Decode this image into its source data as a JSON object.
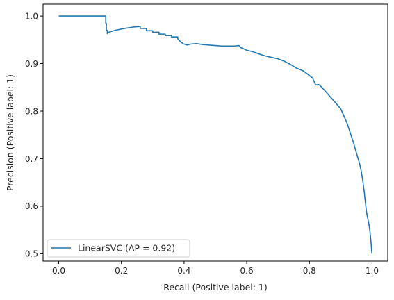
{
  "chart_data": {
    "type": "line",
    "title": "",
    "xlabel": "Recall (Positive label: 1)",
    "ylabel": "Precision (Positive label: 1)",
    "xlim": [
      -0.05,
      1.05
    ],
    "ylim": [
      0.4845,
      1.025
    ],
    "xticks": [
      "0.0",
      "0.2",
      "0.4",
      "0.6",
      "0.8",
      "1.0"
    ],
    "yticks": [
      "0.5",
      "0.6",
      "0.7",
      "0.8",
      "0.9",
      "1.0"
    ],
    "grid": false,
    "legend": {
      "placement": "lower-left",
      "entries": [
        "LinearSVC (AP = 0.92)"
      ]
    },
    "series": [
      {
        "name": "LinearSVC (AP = 0.92)",
        "color": "#1f77b4",
        "x": [
          0.0,
          0.15,
          0.15,
          0.152,
          0.152,
          0.155,
          0.155,
          0.16,
          0.18,
          0.21,
          0.24,
          0.26,
          0.26,
          0.28,
          0.28,
          0.3,
          0.3,
          0.32,
          0.32,
          0.34,
          0.34,
          0.36,
          0.36,
          0.38,
          0.38,
          0.39,
          0.4,
          0.41,
          0.42,
          0.44,
          0.46,
          0.48,
          0.5,
          0.52,
          0.54,
          0.56,
          0.575,
          0.58,
          0.6,
          0.62,
          0.64,
          0.66,
          0.68,
          0.7,
          0.72,
          0.74,
          0.76,
          0.78,
          0.8,
          0.81,
          0.82,
          0.83,
          0.84,
          0.86,
          0.88,
          0.9,
          0.91,
          0.92,
          0.93,
          0.94,
          0.95,
          0.96,
          0.965,
          0.97,
          0.975,
          0.98,
          0.983,
          0.986,
          0.99,
          0.993,
          0.995,
          0.997,
          0.998,
          0.999,
          1.0
        ],
        "y": [
          1.0,
          1.0,
          0.985,
          0.985,
          0.97,
          0.97,
          0.963,
          0.966,
          0.97,
          0.974,
          0.977,
          0.978,
          0.974,
          0.974,
          0.969,
          0.969,
          0.966,
          0.966,
          0.962,
          0.962,
          0.959,
          0.959,
          0.956,
          0.956,
          0.952,
          0.945,
          0.941,
          0.939,
          0.941,
          0.942,
          0.94,
          0.939,
          0.938,
          0.937,
          0.937,
          0.937,
          0.938,
          0.934,
          0.928,
          0.925,
          0.92,
          0.916,
          0.913,
          0.91,
          0.905,
          0.898,
          0.89,
          0.885,
          0.875,
          0.87,
          0.855,
          0.856,
          0.85,
          0.835,
          0.82,
          0.805,
          0.79,
          0.775,
          0.755,
          0.735,
          0.712,
          0.69,
          0.675,
          0.655,
          0.63,
          0.6,
          0.585,
          0.575,
          0.562,
          0.548,
          0.535,
          0.522,
          0.512,
          0.503,
          0.5
        ]
      }
    ]
  }
}
